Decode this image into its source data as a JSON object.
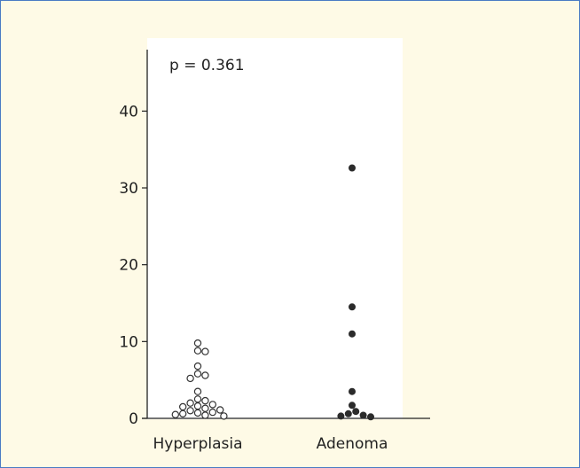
{
  "chart_data": {
    "type": "scatter",
    "title": "",
    "xlabel": "",
    "ylabel": "",
    "annotation": "p = 0.361",
    "categories": [
      "Hyperplasia",
      "Adenoma"
    ],
    "ylim": [
      0,
      48
    ],
    "yticks": [
      0,
      10,
      20,
      30,
      40
    ],
    "grid": false,
    "series": [
      {
        "category": "Hyperplasia",
        "marker": "open-circle",
        "color": "#333333",
        "values": [
          9.8,
          8.8,
          8.7,
          6.8,
          5.8,
          5.6,
          5.2,
          3.5,
          2.5,
          2.3,
          2.0,
          1.8,
          1.6,
          1.5,
          1.3,
          1.1,
          1.0,
          0.8,
          0.7,
          0.6,
          0.5,
          0.4,
          0.3
        ]
      },
      {
        "category": "Adenoma",
        "marker": "filled-circle",
        "color": "#2b2b2b",
        "values": [
          32.6,
          14.5,
          11.0,
          3.5,
          1.7,
          0.9,
          0.6,
          0.4,
          0.3,
          0.2
        ]
      }
    ]
  }
}
